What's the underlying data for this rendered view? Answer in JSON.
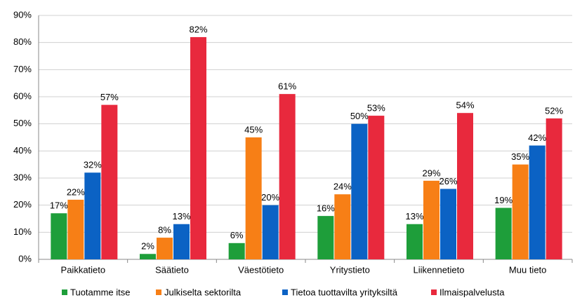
{
  "chart_data": {
    "type": "bar",
    "categories": [
      "Paikkatieto",
      "Säätieto",
      "Väestötieto",
      "Yritystieto",
      "Liikennetieto",
      "Muu tieto"
    ],
    "series": [
      {
        "name": "Tuotamme itse",
        "color": "#1e9e3a",
        "values": [
          17,
          2,
          6,
          16,
          13,
          19
        ],
        "value_labels": [
          "17%",
          "2%",
          "6%",
          "16%",
          "13%",
          "19%"
        ]
      },
      {
        "name": "Julkiselta sektorilta",
        "color": "#f77f16",
        "values": [
          22,
          8,
          45,
          24,
          29,
          35
        ],
        "value_labels": [
          "22%",
          "8%",
          "45%",
          "24%",
          "29%",
          "35%"
        ]
      },
      {
        "name": "Tietoa tuottavilta yrityksiltä",
        "color": "#0b62c4",
        "values": [
          32,
          13,
          20,
          50,
          26,
          42
        ],
        "value_labels": [
          "32%",
          "13%",
          "20%",
          "50%",
          "26%",
          "42%"
        ]
      },
      {
        "name": "Ilmaispalvelusta",
        "color": "#e8293d",
        "values": [
          57,
          82,
          61,
          53,
          54,
          52
        ],
        "value_labels": [
          "57%",
          "82%",
          "61%",
          "53%",
          "54%",
          "52%"
        ]
      }
    ],
    "ylim": [
      0,
      90
    ],
    "yticks": [
      {
        "value": 0,
        "label": "0%"
      },
      {
        "value": 10,
        "label": "10%"
      },
      {
        "value": 20,
        "label": "20%"
      },
      {
        "value": 30,
        "label": "30%"
      },
      {
        "value": 40,
        "label": "40%"
      },
      {
        "value": 50,
        "label": "50%"
      },
      {
        "value": 60,
        "label": "60%"
      },
      {
        "value": 70,
        "label": "70%"
      },
      {
        "value": 80,
        "label": "80%"
      },
      {
        "value": 90,
        "label": "90%"
      }
    ],
    "grid": true,
    "legend": "bottom"
  }
}
